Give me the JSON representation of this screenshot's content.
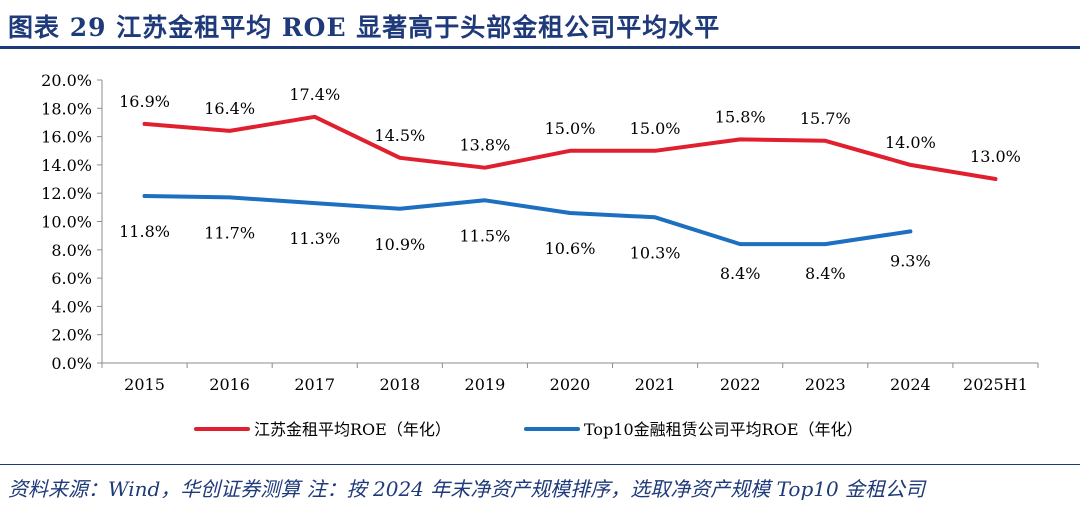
{
  "header": {
    "title": "图表 29   江苏金租平均 ROE 显著高于头部金租公司平均水平"
  },
  "chart_data": {
    "type": "line",
    "title": "",
    "xlabel": "",
    "ylabel": "",
    "categories": [
      "2015",
      "2016",
      "2017",
      "2018",
      "2019",
      "2020",
      "2021",
      "2022",
      "2023",
      "2024",
      "2025H1"
    ],
    "ylim": [
      0,
      20
    ],
    "yticks": [
      "0.0%",
      "2.0%",
      "4.0%",
      "6.0%",
      "8.0%",
      "10.0%",
      "12.0%",
      "14.0%",
      "16.0%",
      "18.0%",
      "20.0%"
    ],
    "grid": false,
    "legend_position": "bottom",
    "series": [
      {
        "name": "江苏金租平均ROE（年化）",
        "color": "#e0202f",
        "values": [
          16.9,
          16.4,
          17.4,
          14.5,
          13.8,
          15.0,
          15.0,
          15.8,
          15.7,
          14.0,
          13.0
        ],
        "labels": [
          "16.9%",
          "16.4%",
          "17.4%",
          "14.5%",
          "13.8%",
          "15.0%",
          "15.0%",
          "15.8%",
          "15.7%",
          "14.0%",
          "13.0%"
        ]
      },
      {
        "name": "Top10金融租赁公司平均ROE（年化）",
        "color": "#1d6fc0",
        "values": [
          11.8,
          11.7,
          11.3,
          10.9,
          11.5,
          10.6,
          10.3,
          8.4,
          8.4,
          9.3,
          null
        ],
        "labels": [
          "11.8%",
          "11.7%",
          "11.3%",
          "10.9%",
          "11.5%",
          "10.6%",
          "10.3%",
          "8.4%",
          "8.4%",
          "9.3%",
          null
        ]
      }
    ]
  },
  "footer": {
    "source": "资料来源：Wind，华创证券测算   注：按 2024 年末净资产规模排序，选取净资产规模 Top10 金租公司"
  }
}
